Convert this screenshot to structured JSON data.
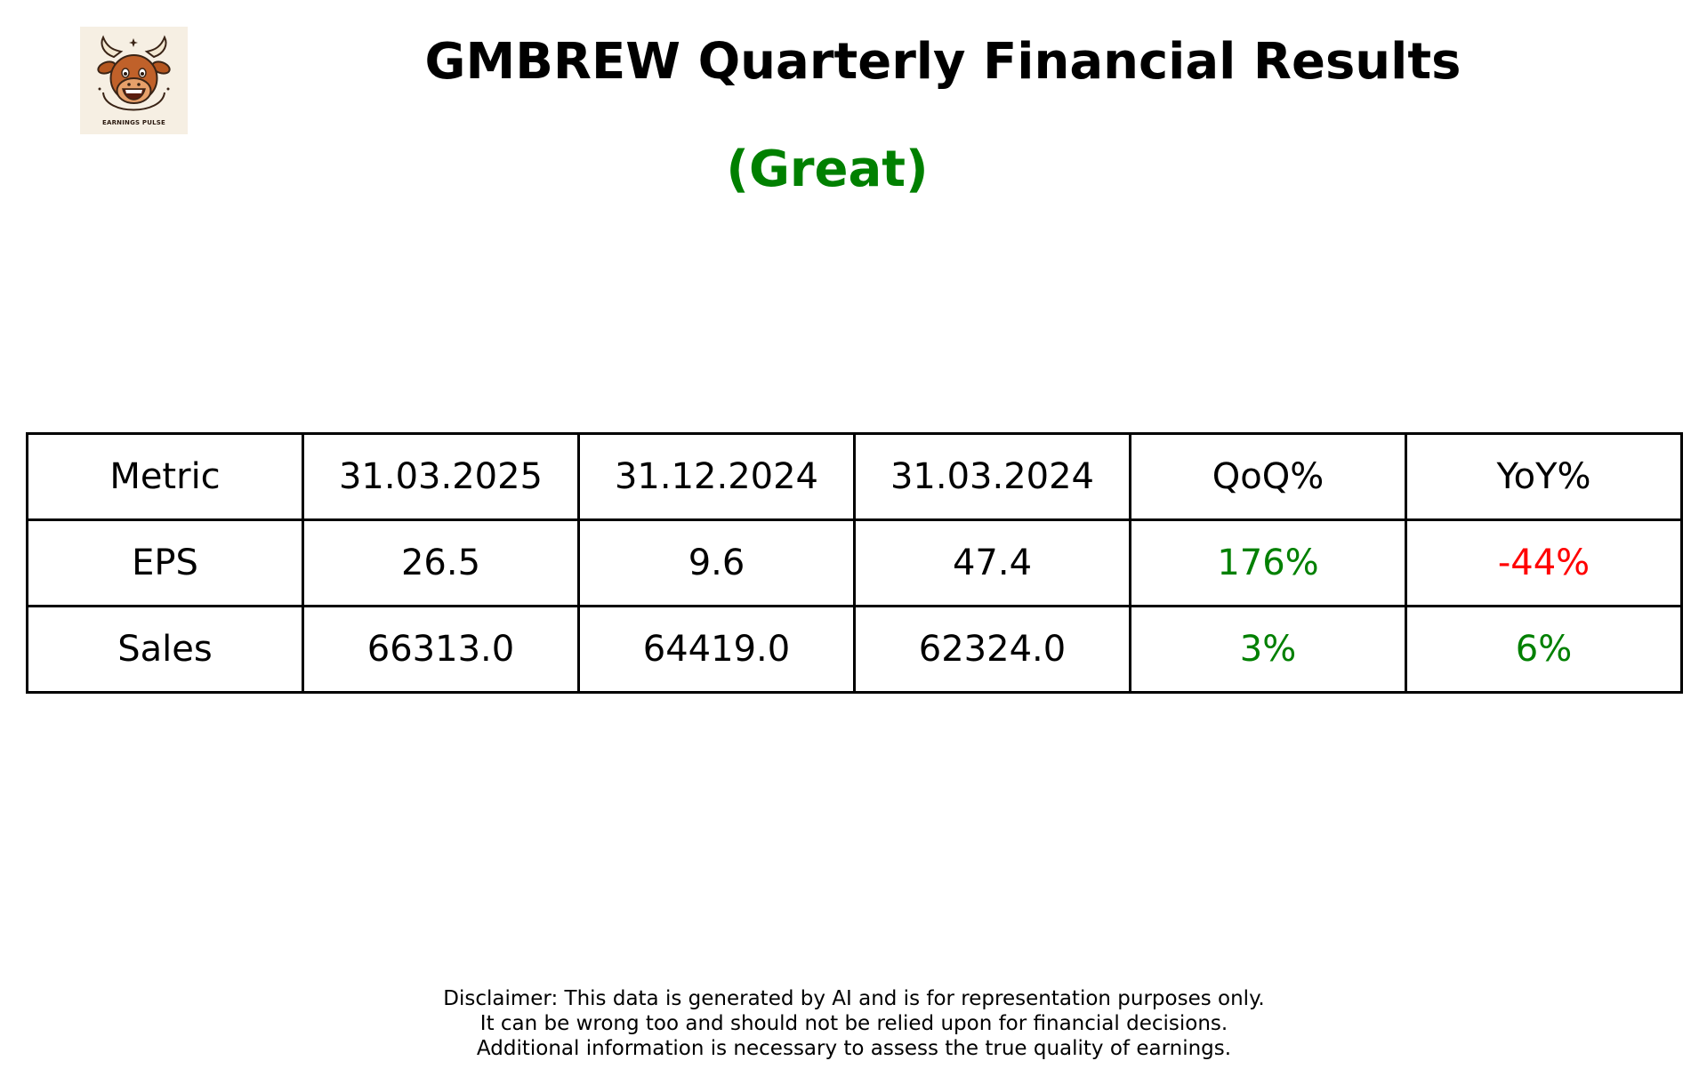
{
  "logo": {
    "text": "EARNINGS PULSE"
  },
  "header": {
    "title": "GMBREW Quarterly Financial Results",
    "rating": "(Great)",
    "rating_color": "#008000"
  },
  "colors": {
    "positive": "#008000",
    "negative": "#ff0000",
    "neutral": "#000000"
  },
  "chart_data": {
    "type": "table",
    "columns": [
      "Metric",
      "31.03.2025",
      "31.12.2024",
      "31.03.2024",
      "QoQ%",
      "YoY%"
    ],
    "rows": [
      {
        "metric": "EPS",
        "values": [
          "26.5",
          "9.6",
          "47.4"
        ],
        "qoq": "176%",
        "yoy": "-44%"
      },
      {
        "metric": "Sales",
        "values": [
          "66313.0",
          "64419.0",
          "62324.0"
        ],
        "qoq": "3%",
        "yoy": "6%"
      }
    ]
  },
  "disclaimer": {
    "lines": [
      "Disclaimer: This data is generated by AI and is for representation purposes only.",
      "It can be wrong too and should not be relied upon for financial decisions.",
      "Additional information is necessary to assess the true quality of earnings."
    ]
  }
}
